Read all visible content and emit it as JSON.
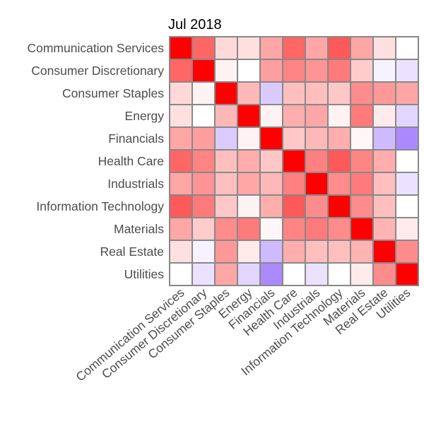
{
  "chart_data": {
    "type": "heatmap",
    "title": "Jul 2018",
    "xlabel": "",
    "ylabel": "",
    "x_categories": [
      "Communication Services",
      "Consumer Discretionary",
      "Consumer Staples",
      "Energy",
      "Financials",
      "Health Care",
      "Industrials",
      "Information Technology",
      "Materials",
      "Real Estate",
      "Utilities"
    ],
    "y_categories": [
      "Communication Services",
      "Consumer Discretionary",
      "Consumer Staples",
      "Energy",
      "Financials",
      "Health Care",
      "Industrials",
      "Information Technology",
      "Materials",
      "Real Estate",
      "Utilities"
    ],
    "value_range": [
      -1,
      1
    ],
    "colors": {
      "low": "#8a5cff",
      "mid": "#ffffff",
      "high": "#ff0000",
      "border": "#888888",
      "tick_text": "#4d4d4d"
    },
    "values": [
      [
        1.0,
        0.6,
        0.15,
        0.12,
        0.35,
        0.6,
        0.35,
        0.65,
        0.35,
        0.12,
        0.0
      ],
      [
        0.6,
        1.0,
        0.05,
        0.0,
        0.38,
        0.48,
        0.42,
        0.52,
        0.2,
        -0.08,
        -0.18
      ],
      [
        0.15,
        0.05,
        1.0,
        0.28,
        -0.32,
        0.25,
        0.25,
        0.22,
        0.45,
        0.4,
        0.35
      ],
      [
        0.12,
        0.0,
        0.28,
        1.0,
        0.05,
        0.32,
        0.35,
        0.05,
        0.52,
        0.08,
        -0.25
      ],
      [
        0.35,
        0.38,
        -0.32,
        0.05,
        1.0,
        0.22,
        0.28,
        0.32,
        0.03,
        -0.42,
        -0.72
      ],
      [
        0.6,
        0.48,
        0.25,
        0.32,
        0.22,
        1.0,
        0.5,
        0.65,
        0.48,
        0.32,
        0.0
      ],
      [
        0.35,
        0.42,
        0.25,
        0.35,
        0.28,
        0.5,
        1.0,
        0.45,
        0.52,
        0.25,
        -0.18
      ],
      [
        0.65,
        0.52,
        0.22,
        0.05,
        0.32,
        0.65,
        0.45,
        1.0,
        0.45,
        0.25,
        0.0
      ],
      [
        0.35,
        0.2,
        0.45,
        0.52,
        0.03,
        0.48,
        0.52,
        0.45,
        1.0,
        0.3,
        0.08
      ],
      [
        0.12,
        -0.08,
        0.4,
        0.08,
        -0.42,
        0.32,
        0.25,
        0.25,
        0.3,
        1.0,
        0.45
      ],
      [
        0.0,
        -0.18,
        0.35,
        -0.25,
        -0.72,
        0.0,
        -0.18,
        0.0,
        0.08,
        0.45,
        1.0
      ]
    ]
  }
}
